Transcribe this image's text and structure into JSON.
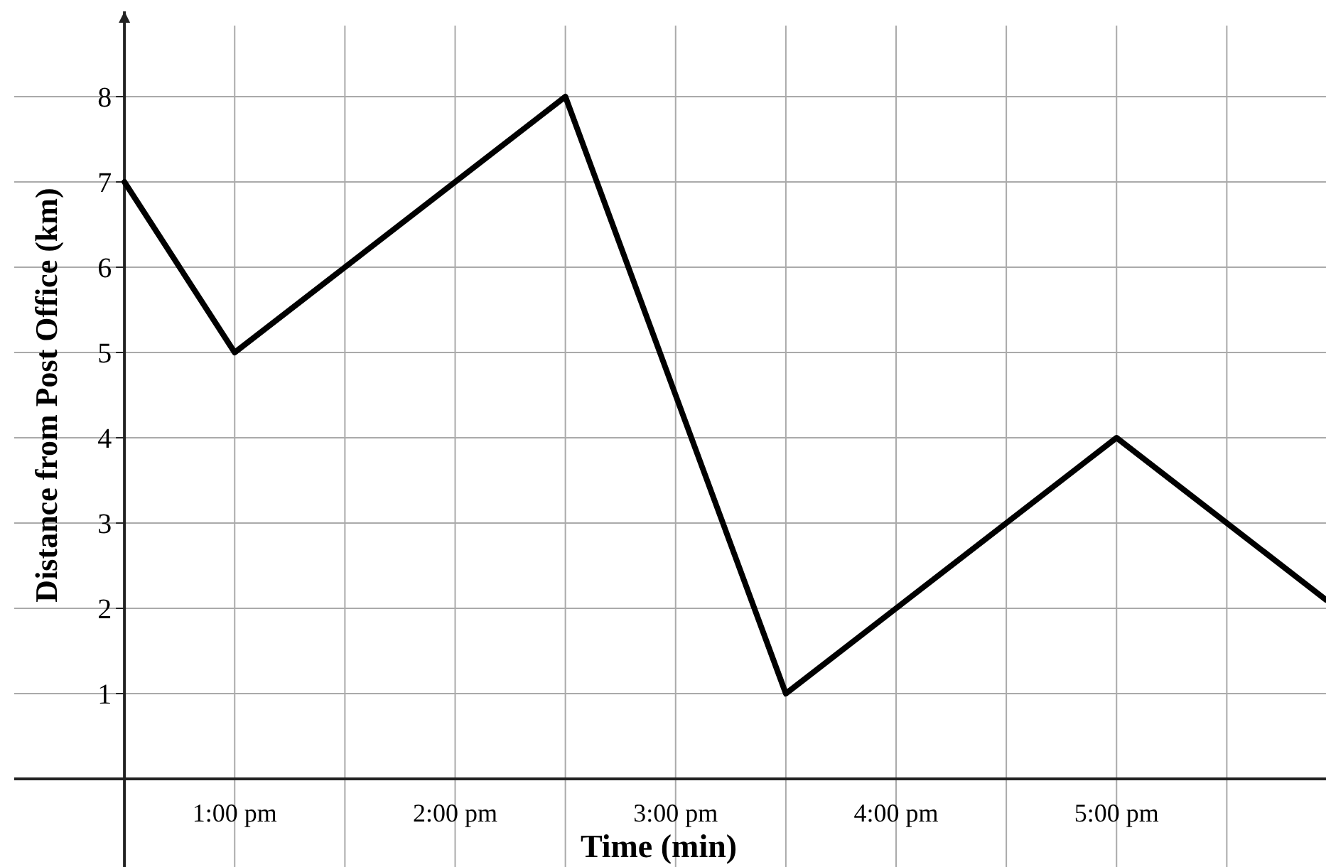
{
  "chart_data": {
    "type": "line",
    "xlabel": "Time (min)",
    "ylabel": "Distance from Post Office (km)",
    "x": [
      12.5,
      13,
      14.5,
      15.5,
      17,
      17.95
    ],
    "series": [
      {
        "color": "#000000",
        "values": [
          7,
          5,
          8,
          1,
          4,
          2.1
        ]
      }
    ],
    "xlim": [
      12,
      17.95
    ],
    "ylim": [
      -1,
      9
    ],
    "xticks": [
      {
        "value": 12.5,
        "label": null
      },
      {
        "value": 13,
        "label": "1:00 pm"
      },
      {
        "value": 13.5,
        "label": null
      },
      {
        "value": 14,
        "label": "2:00 pm"
      },
      {
        "value": 14.5,
        "label": null
      },
      {
        "value": 15,
        "label": "3:00 pm"
      },
      {
        "value": 15.5,
        "label": null
      },
      {
        "value": 16,
        "label": "4:00 pm"
      },
      {
        "value": 16.5,
        "label": null
      },
      {
        "value": 17,
        "label": "5:00 pm"
      },
      {
        "value": 17.5,
        "label": null
      }
    ],
    "yticks": [
      1,
      2,
      3,
      4,
      5,
      6,
      7,
      8
    ],
    "grid": true,
    "marker": "none",
    "line_style": "solid"
  }
}
